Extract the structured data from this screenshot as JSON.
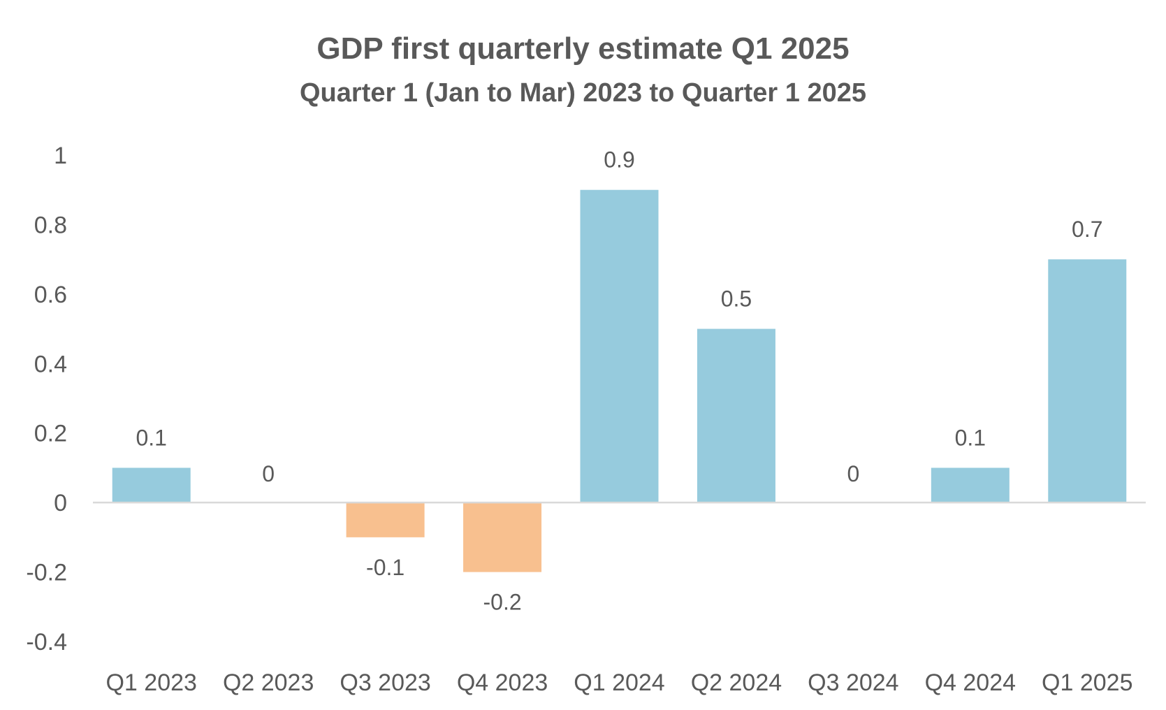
{
  "chart_data": {
    "type": "bar",
    "title": "GDP first quarterly estimate Q1 2025",
    "subtitle": "Quarter 1 (Jan to Mar) 2023 to Quarter 1 2025",
    "categories": [
      "Q1 2023",
      "Q2 2023",
      "Q3 2023",
      "Q4 2023",
      "Q1 2024",
      "Q2 2024",
      "Q3 2024",
      "Q4 2024",
      "Q1 2025"
    ],
    "values": [
      0.1,
      0,
      -0.1,
      -0.2,
      0.9,
      0.5,
      0,
      0.1,
      0.7
    ],
    "data_labels": [
      "0.1",
      "0",
      "-0.1",
      "-0.2",
      "0.9",
      "0.5",
      "0",
      "0.1",
      "0.7"
    ],
    "ylim": [
      -0.4,
      1
    ],
    "yticks": [
      -0.4,
      -0.2,
      0,
      0.2,
      0.4,
      0.6,
      0.8,
      1
    ],
    "ytick_labels": [
      "-0.4",
      "-0.2",
      "0",
      "0.2",
      "0.4",
      "0.6",
      "0.8",
      "1"
    ],
    "xlabel": "",
    "ylabel": "",
    "grid": false,
    "legend": "none",
    "colors": {
      "positive": "#96CBDD",
      "negative": "#F8C08F",
      "axis": "#D9D9D9",
      "text": "#595959"
    }
  }
}
